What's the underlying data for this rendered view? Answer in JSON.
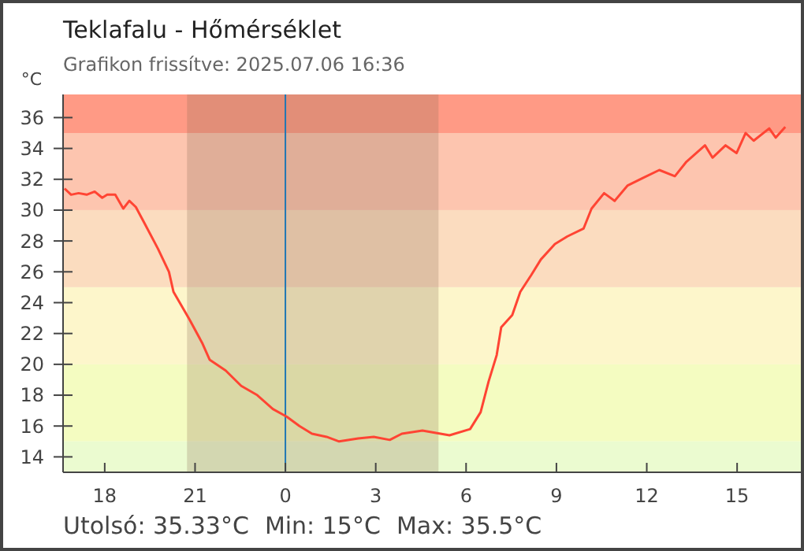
{
  "chart_data": {
    "type": "line",
    "title": "Teklafalu - Hőmérséklet",
    "subtitle": "Grafikon frissítve: 2025.07.06 16:36",
    "ylabel": "°C",
    "annotations": [
      "Utolsó: 35.33°C",
      "Min: 15°C",
      "Max: 35.5°C"
    ],
    "xlim": [
      "2025-07-05T16:37",
      "2025-07-06T17:07"
    ],
    "ylim": [
      13,
      37.5
    ],
    "xticks": [
      {
        "value": "2025-07-05T18:00",
        "label": "18"
      },
      {
        "value": "2025-07-05T21:00",
        "label": "21"
      },
      {
        "value": "2025-07-06T00:00",
        "label": "0"
      },
      {
        "value": "2025-07-06T03:00",
        "label": "3"
      },
      {
        "value": "2025-07-06T06:00",
        "label": "6"
      },
      {
        "value": "2025-07-06T09:00",
        "label": "9"
      },
      {
        "value": "2025-07-06T12:00",
        "label": "12"
      },
      {
        "value": "2025-07-06T15:00",
        "label": "15"
      }
    ],
    "yticks": [
      14,
      16,
      18,
      20,
      22,
      24,
      26,
      28,
      30,
      32,
      34,
      36
    ],
    "bands": [
      {
        "axis": "y",
        "from": 35,
        "to": 37.5,
        "color": "#ff9a85"
      },
      {
        "axis": "y",
        "from": 30,
        "to": 35,
        "color": "#fdc5af"
      },
      {
        "axis": "y",
        "from": 25,
        "to": 30,
        "color": "#fbdcbf"
      },
      {
        "axis": "y",
        "from": 20,
        "to": 25,
        "color": "#fdf6cb"
      },
      {
        "axis": "y",
        "from": 15,
        "to": 20,
        "color": "#f4fcc1"
      },
      {
        "axis": "y",
        "from": 13,
        "to": 15,
        "color": "#ebfbd0"
      },
      {
        "axis": "x",
        "from": "2025-07-05T20:44",
        "to": "2025-07-06T05:05",
        "color": "#8a6a55"
      }
    ],
    "ref_lines": [
      {
        "axis": "x",
        "value": "2025-07-06T00:00",
        "color": "#1f77b4"
      }
    ],
    "marker": "none",
    "line_style": "solid",
    "series": [
      {
        "color": "#ff4433",
        "x": [
          "2025-07-05T16:40",
          "2025-07-05T16:53",
          "2025-07-05T17:08",
          "2025-07-05T17:24",
          "2025-07-05T17:40",
          "2025-07-05T17:55",
          "2025-07-05T18:05",
          "2025-07-05T18:21",
          "2025-07-05T18:37",
          "2025-07-05T18:49",
          "2025-07-05T19:02",
          "2025-07-05T19:20",
          "2025-07-05T19:46",
          "2025-07-05T20:08",
          "2025-07-05T20:17",
          "2025-07-05T20:49",
          "2025-07-05T21:14",
          "2025-07-05T21:29",
          "2025-07-05T22:01",
          "2025-07-05T22:32",
          "2025-07-05T23:04",
          "2025-07-05T23:35",
          "2025-07-06T00:03",
          "2025-07-06T00:28",
          "2025-07-06T00:53",
          "2025-07-06T01:22",
          "2025-07-06T01:47",
          "2025-07-06T02:25",
          "2025-07-06T02:56",
          "2025-07-06T03:28",
          "2025-07-06T03:52",
          "2025-07-06T04:33",
          "2025-07-06T05:27",
          "2025-07-06T06:08",
          "2025-07-06T06:29",
          "2025-07-06T06:45",
          "2025-07-06T07:01",
          "2025-07-06T07:10",
          "2025-07-06T07:32",
          "2025-07-06T07:48",
          "2025-07-06T08:10",
          "2025-07-06T08:29",
          "2025-07-06T08:57",
          "2025-07-06T09:22",
          "2025-07-06T09:54",
          "2025-07-06T10:10",
          "2025-07-06T10:35",
          "2025-07-06T10:56",
          "2025-07-06T11:22",
          "2025-07-06T11:53",
          "2025-07-06T12:25",
          "2025-07-06T12:56",
          "2025-07-06T13:18",
          "2025-07-06T13:56",
          "2025-07-06T14:11",
          "2025-07-06T14:37",
          "2025-07-06T14:59",
          "2025-07-06T15:17",
          "2025-07-06T15:33",
          "2025-07-06T16:04",
          "2025-07-06T16:17",
          "2025-07-06T16:36"
        ],
        "values": [
          31.4,
          31.0,
          31.1,
          31.0,
          31.2,
          30.8,
          31.0,
          31.0,
          30.1,
          30.6,
          30.2,
          29.1,
          27.5,
          26.0,
          24.7,
          22.9,
          21.4,
          20.3,
          19.6,
          18.6,
          18.0,
          17.1,
          16.6,
          16.0,
          15.5,
          15.3,
          15.0,
          15.2,
          15.3,
          15.1,
          15.5,
          15.7,
          15.4,
          15.8,
          16.9,
          18.9,
          20.6,
          22.4,
          23.2,
          24.7,
          25.8,
          26.8,
          27.8,
          28.3,
          28.8,
          30.1,
          31.1,
          30.6,
          31.6,
          32.1,
          32.6,
          32.2,
          33.1,
          34.2,
          33.4,
          34.2,
          33.7,
          35.0,
          34.5,
          35.3,
          34.7,
          35.4
        ]
      }
    ]
  }
}
